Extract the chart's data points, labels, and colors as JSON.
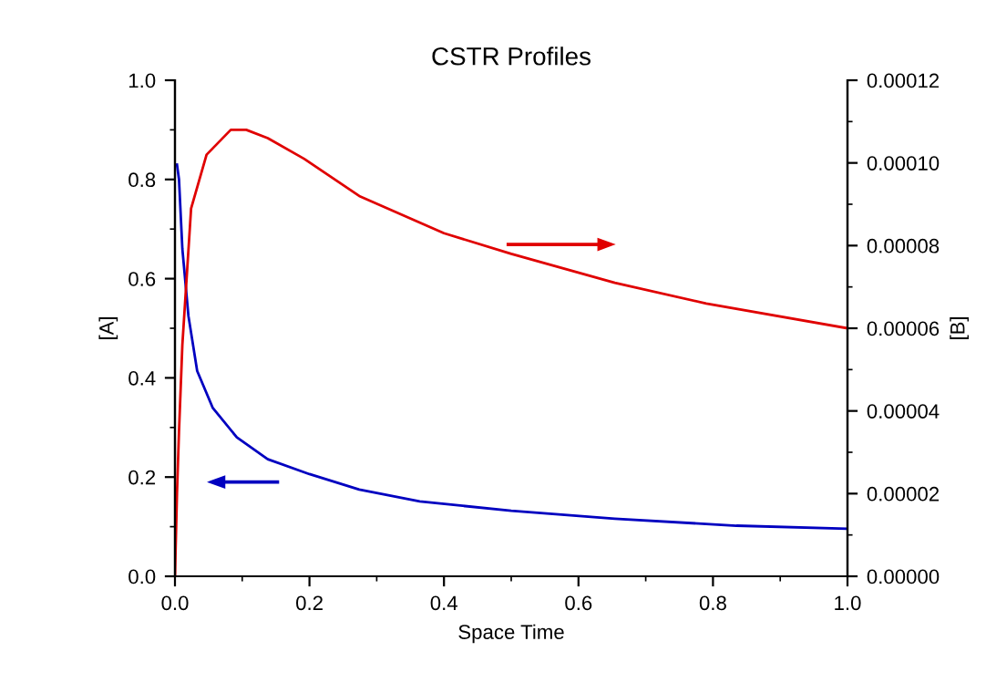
{
  "chart_data": {
    "type": "line",
    "title": "CSTR Profiles",
    "xlabel": "Space Time",
    "ylabel": "[A]",
    "y2label": "[B]",
    "xlim": [
      0.0,
      1.0
    ],
    "xticks": [
      {
        "value": 0,
        "label": "0.0"
      },
      0.2,
      0.4,
      0.6,
      0.8,
      {
        "value": 1,
        "label": "1.0"
      }
    ],
    "ylim": [
      0.0,
      1.0
    ],
    "yticks": [
      {
        "value": 0,
        "label": "0.0"
      },
      0.2,
      0.4,
      0.6,
      0.8,
      {
        "value": 1,
        "label": "1.0"
      }
    ],
    "y2lim": [
      0,
      0.00012
    ],
    "y2ticks": [
      {
        "value": 0,
        "label": "0.00000"
      },
      {
        "value": 2e-05,
        "label": "0.00002"
      },
      {
        "value": 4e-05,
        "label": "0.00004"
      },
      {
        "value": 6e-05,
        "label": "0.00006"
      },
      {
        "value": 8e-05,
        "label": "0.00008"
      },
      {
        "value": 0.0001,
        "label": "0.00010"
      },
      {
        "value": 0.00012,
        "label": "0.00012"
      }
    ],
    "grid": false,
    "legend": false,
    "marker": "none",
    "line_style": "solid",
    "series": [
      {
        "color": "#0000c0",
        "x": [
          0.003,
          0.006,
          0.011,
          0.02,
          0.033,
          0.056,
          0.092,
          0.138,
          0.2,
          0.274,
          0.364,
          0.5,
          0.654,
          0.835,
          1.0
        ],
        "values": [
          0.83,
          0.8,
          0.66,
          0.525,
          0.414,
          0.34,
          0.28,
          0.236,
          0.206,
          0.175,
          0.151,
          0.132,
          0.116,
          0.102,
          0.096
        ]
      },
      {
        "color": "#e00000",
        "axis": "y2",
        "x": [
          0.0,
          0.003,
          0.006,
          0.011,
          0.024,
          0.047,
          0.083,
          0.106,
          0.138,
          0.192,
          0.274,
          0.4,
          0.5,
          0.654,
          0.79,
          1.0
        ],
        "values": [
          0,
          2e-05,
          3.5e-05,
          5.6e-05,
          8.9e-05,
          0.000102,
          0.000108,
          0.000108,
          0.000106,
          0.000101,
          9.2e-05,
          8.3e-05,
          7.8e-05,
          7.1e-05,
          6.6e-05,
          6e-05
        ]
      }
    ]
  }
}
